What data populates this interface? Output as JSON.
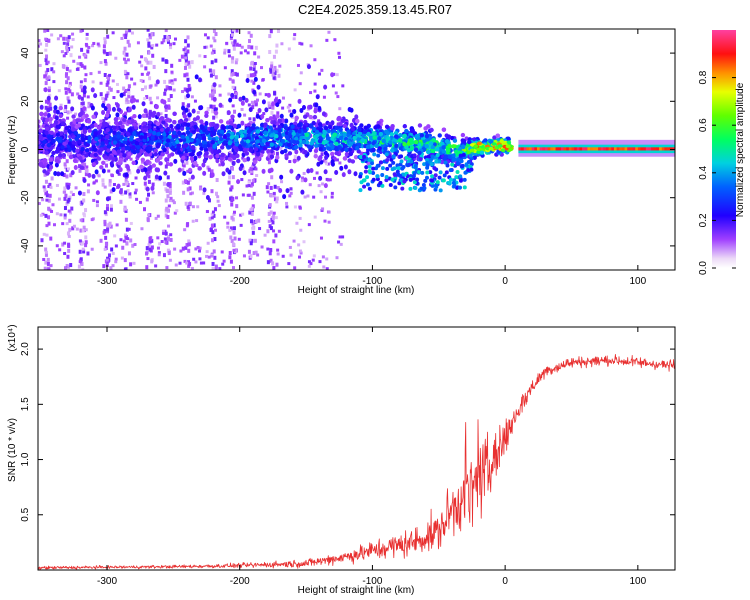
{
  "title": "C2E4.2025.359.13.45.R07",
  "chart_data": [
    {
      "type": "heatmap",
      "name": "spectrogram",
      "xlabel": "Height of straight line (km)",
      "ylabel": "Frequency (Hz)",
      "xlim": [
        -352,
        128
      ],
      "ylim": [
        -50,
        50
      ],
      "xticks": [
        -300,
        -200,
        -100,
        0,
        100
      ],
      "xtick_labels": [
        "-300",
        "-200",
        "-100",
        "0",
        "100"
      ],
      "yticks": [
        -40,
        -20,
        0,
        20,
        40
      ],
      "ytick_labels": [
        "-40",
        "-20",
        "0",
        "20",
        "40"
      ],
      "colorbar": {
        "label": "Normalized spectral amplitude",
        "range": [
          0,
          1
        ],
        "ticks": [
          0.0,
          0.2,
          0.4,
          0.6,
          0.8
        ],
        "tick_labels": [
          "0.0",
          "0.2",
          "0.4",
          "0.6",
          "0.8"
        ]
      },
      "ridge": {
        "x": [
          -352,
          -250,
          -200,
          -150,
          -100,
          -60,
          -30,
          -15,
          0,
          10,
          128
        ],
        "center_hz": [
          4,
          4,
          5,
          5,
          4,
          2,
          0,
          1,
          2,
          0,
          0
        ],
        "halfwidth_hz": [
          9,
          8,
          7,
          6,
          6,
          6,
          4,
          3,
          3,
          2,
          2
        ],
        "peak_amp": [
          0.25,
          0.35,
          0.4,
          0.45,
          0.5,
          0.55,
          0.6,
          0.75,
          0.8,
          0.95,
          0.95
        ]
      },
      "vertical_streaks_x": [
        -345,
        -330,
        -318,
        -300,
        -285,
        -268,
        -255,
        -240,
        -220,
        -205,
        -190,
        -175
      ]
    },
    {
      "type": "line",
      "name": "snr",
      "xlabel": "Height of straight line (km)",
      "ylabel": "SNR (10 * v/v)",
      "scale_label": "(x10⁴)",
      "xlim": [
        -352,
        128
      ],
      "ylim": [
        0,
        22000
      ],
      "xticks": [
        -300,
        -200,
        -100,
        0,
        100
      ],
      "xtick_labels": [
        "-300",
        "-200",
        "-100",
        "0",
        "100"
      ],
      "yticks": [
        5000,
        10000,
        15000,
        20000
      ],
      "ytick_labels": [
        "0.5",
        "1.0",
        "1.5",
        "2.0"
      ],
      "color": "#e83030",
      "envelope": {
        "x": [
          -352,
          -250,
          -200,
          -150,
          -120,
          -90,
          -70,
          -50,
          -40,
          -30,
          -20,
          -10,
          0,
          10,
          20,
          30,
          50,
          80,
          128
        ],
        "mean": [
          200,
          300,
          400,
          600,
          1200,
          2000,
          2500,
          3500,
          5500,
          6500,
          8000,
          9500,
          12000,
          14500,
          16500,
          18000,
          18800,
          19000,
          18500
        ],
        "noise": [
          200,
          200,
          300,
          500,
          800,
          1500,
          1800,
          2500,
          3500,
          4500,
          5000,
          4500,
          2500,
          1500,
          1000,
          800,
          700,
          700,
          700
        ]
      }
    }
  ]
}
